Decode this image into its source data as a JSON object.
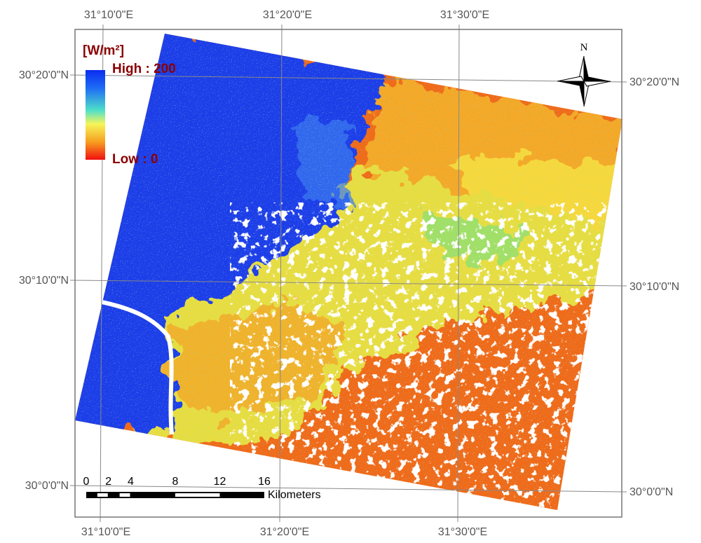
{
  "map": {
    "top_labels": [
      "31°10'0\"E",
      "31°20'0\"E",
      "31°30'0\"E"
    ],
    "bottom_labels": [
      "31°10'0\"E",
      "31°20'0\"E",
      "31°30'0\"E"
    ],
    "left_labels": [
      "30°20'0\"N",
      "30°10'0\"N",
      "30°0'0\"N"
    ],
    "right_labels": [
      "30°20'0\"N",
      "30°10'0\"N",
      "30°0'0\"N"
    ],
    "legend": {
      "title": "[W/m²]",
      "high": "High : 200",
      "low": "Low : 0"
    },
    "north": "N",
    "scale_bar": {
      "ticks": [
        0,
        2,
        4,
        8,
        12,
        16
      ],
      "unit": "Kilometers"
    }
  }
}
